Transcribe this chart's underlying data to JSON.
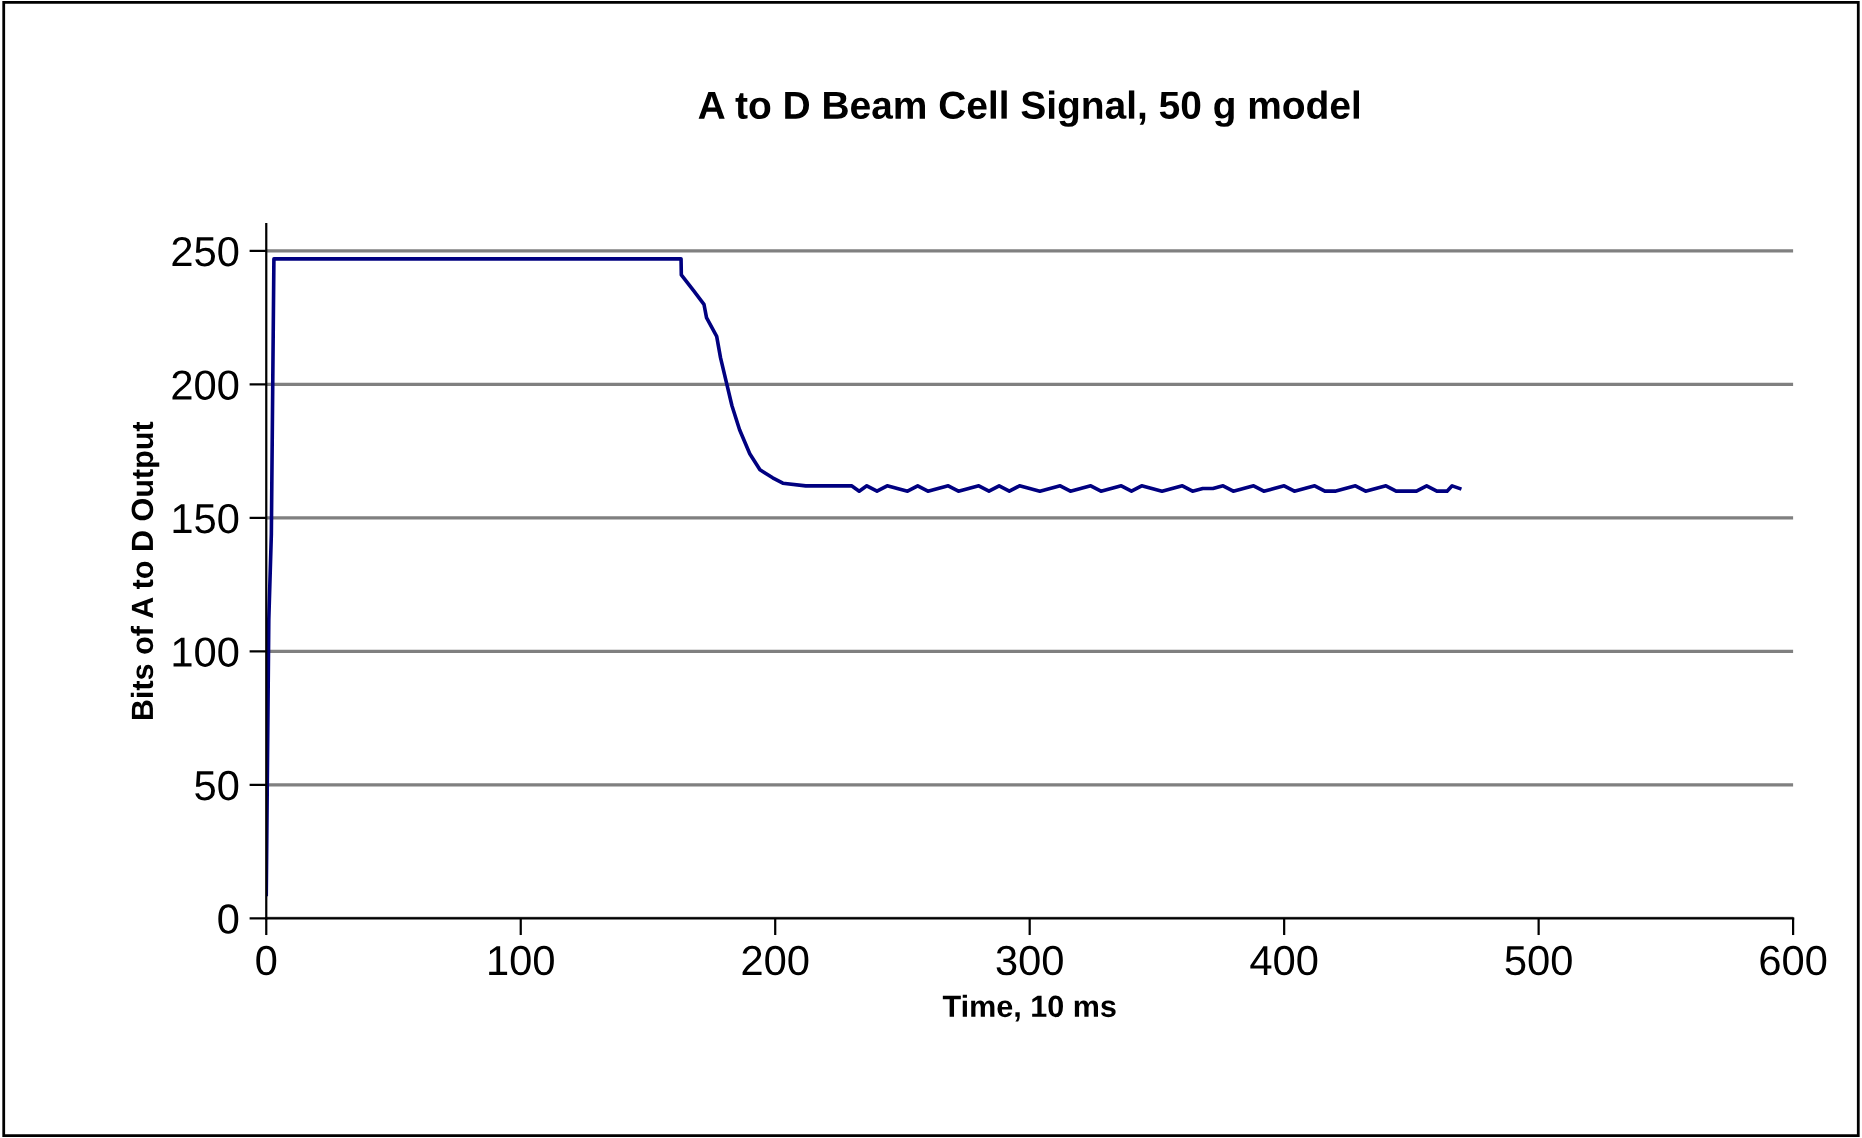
{
  "chart_data": {
    "type": "line",
    "title": "A to D Beam Cell Signal, 50 g model",
    "xlabel": "Time, 10 ms",
    "ylabel": "Bits of A to D Output",
    "series": [
      {
        "color": "#000080",
        "x": [
          0,
          1,
          2,
          3,
          40,
          80,
          120,
          163,
          163.1,
          168,
          172,
          173,
          177,
          178.5,
          181,
          183,
          186,
          190,
          194,
          199,
          203,
          212,
          230,
          233,
          236,
          240,
          244,
          248,
          252,
          256,
          260,
          264,
          268,
          272,
          276,
          280,
          284,
          288,
          292,
          296,
          300,
          304,
          308,
          312,
          316,
          320,
          324,
          328,
          332,
          336,
          340,
          344,
          348,
          352,
          356,
          360,
          364,
          368,
          372,
          376,
          380,
          384,
          388,
          392,
          396,
          400,
          404,
          408,
          412,
          416,
          420,
          424,
          428,
          432,
          436,
          440,
          444,
          448,
          452,
          456,
          460,
          464,
          466,
          469
        ],
        "values": [
          9,
          112,
          144,
          247,
          247,
          247,
          247,
          247,
          241,
          235,
          230,
          225,
          218,
          210,
          200,
          192,
          183,
          174,
          168,
          165,
          163,
          162,
          162,
          160,
          162,
          160,
          162,
          161,
          160,
          162,
          160,
          161,
          162,
          160,
          161,
          162,
          160,
          162,
          160,
          162,
          161,
          160,
          161,
          162,
          160,
          161,
          162,
          160,
          161,
          162,
          160,
          162,
          161,
          160,
          161,
          162,
          160,
          161,
          161,
          162,
          160,
          161,
          162,
          160,
          161,
          162,
          160,
          161,
          162,
          160,
          160,
          161,
          162,
          160,
          161,
          162,
          160,
          160,
          160,
          162,
          160,
          160,
          162,
          161
        ]
      }
    ],
    "xlim": [
      0,
      600
    ],
    "xticks": [
      0,
      100,
      200,
      300,
      400,
      500,
      600
    ],
    "ylim": [
      0,
      260
    ],
    "yticks": [
      0,
      50,
      100,
      150,
      200,
      250
    ],
    "grid": "y",
    "legend": false,
    "marker": "none",
    "line_style": "solid"
  }
}
